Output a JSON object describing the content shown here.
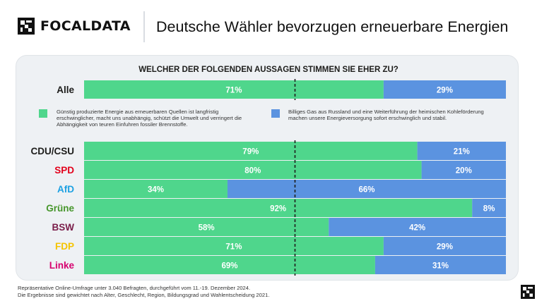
{
  "brand": {
    "name": "FOCALDATA"
  },
  "title": "Deutsche Wähler bevorzugen erneuerbare Energien",
  "question": "WELCHER DER FOLGENDEN AUSSAGEN STIMMEN SIE EHER ZU?",
  "legend": {
    "green": "Günstig produzierte Energie aus erneuerbaren Quellen ist langfristig erschwinglicher, macht uns unabhängig, schützt die Umwelt und verringert die Abhängigkeit von teuren Einfuhren fossiler Brennstoffe.",
    "blue": "Billiges Gas aus Russland und eine Weiterführung der heimischen Kohleförderung machen unsere Energieversorgung sofort erschwinglich und stabil."
  },
  "footnote": {
    "line1": "Repräsentative Online-Umfrage unter 3.040 Befragten, durchgeführt vom 11.-19. Dezember 2024.",
    "line2": "Die Ergebnisse sind gewichtet nach Alter, Geschlecht, Region, Bildungsgrad und Wahlentscheidung 2021."
  },
  "colors": {
    "green": "#4fd68c",
    "blue": "#5b93e0",
    "labels": {
      "Alle": "#1d1d1b",
      "CDU/CSU": "#1d1d1b",
      "SPD": "#e3001b",
      "AfD": "#1da1e2",
      "Grüne": "#46962b",
      "BSW": "#7b1e4a",
      "FDP": "#f5c400",
      "Linke": "#d6006e"
    }
  },
  "chart_data": {
    "type": "bar",
    "orientation": "horizontal",
    "stacked": true,
    "reference_line": 50,
    "xlim": [
      0,
      100
    ],
    "categories": [
      "Alle",
      "CDU/CSU",
      "SPD",
      "AfD",
      "Grüne",
      "BSW",
      "FDP",
      "Linke"
    ],
    "series": [
      {
        "values": [
          71,
          79,
          80,
          34,
          92,
          58,
          71,
          69
        ],
        "labels": [
          "71%",
          "79%",
          "80%",
          "34%",
          "92%",
          "58%",
          "71%",
          "69%"
        ]
      },
      {
        "values": [
          29,
          21,
          20,
          66,
          8,
          42,
          29,
          31
        ],
        "labels": [
          "29%",
          "21%",
          "20%",
          "66%",
          "8%",
          "42%",
          "29%",
          "31%"
        ]
      }
    ]
  }
}
